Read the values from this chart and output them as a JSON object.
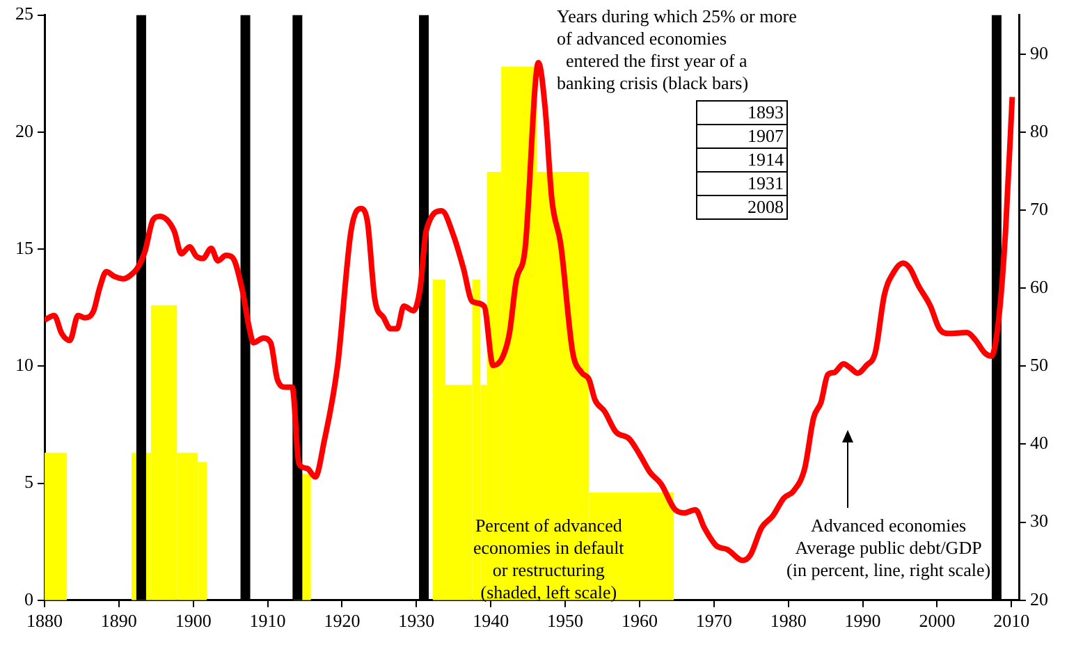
{
  "chart_data": {
    "type": "histogram",
    "annotations": [
      "Years during which 25% or more\nof advanced economies\n  entered the first year of a\nbanking crisis (black bars)",
      "1893",
      "1907",
      "1914",
      "1931",
      "2008",
      "Percent of advanced\neconomies in default\nor restructuring\n(shaded, left scale)",
      "Advanced economies\nAverage public debt/GDP\n(in percent, line, right scale)"
    ],
    "series": [
      {
        "color": "#ffff00",
        "bins": [
          1880,
          1883,
          1891.7,
          1894.3,
          1897.8,
          1900.6,
          1901.8,
          1913.5,
          1915.8,
          1932.2,
          1933.9,
          1937.5,
          1938.6,
          1939.5,
          1941.4,
          1946.2,
          1953.2,
          1964.6
        ],
        "values": [
          6.3,
          0,
          6.3,
          12.6,
          6.3,
          5.9,
          0,
          5.4,
          0,
          13.7,
          9.2,
          13.7,
          9.2,
          18.3,
          22.8,
          18.3,
          4.6
        ]
      },
      {
        "type": "line",
        "axis": "y2",
        "color": "#ff0000",
        "x": [
          1880,
          1881.3,
          1882.3,
          1883.4,
          1884.5,
          1885.4,
          1886.6,
          1887.4,
          1888.3,
          1889.4,
          1890.6,
          1891.5,
          1892.5,
          1893.5,
          1894.6,
          1895.5,
          1897.4,
          1898.4,
          1899.5,
          1900.4,
          1901.3,
          1902.4,
          1903.3,
          1904.4,
          1905.3,
          1906.6,
          1907.5,
          1908.1,
          1909.4,
          1910.4,
          1911.3,
          1912.4,
          1913.3,
          1914.2,
          1915.3,
          1916.4,
          1917.6,
          1919.4,
          1921.2,
          1922.5,
          1923.4,
          1924.4,
          1925.6,
          1926.5,
          1927.4,
          1928.3,
          1929.6,
          1930.5,
          1931.3,
          1933.4,
          1935,
          1936.3,
          1937.5,
          1939.1,
          1940.3,
          1941.5,
          1942.5,
          1943.4,
          1944.6,
          1946.4,
          1947.3,
          1948.2,
          1949.4,
          1951,
          1952.2,
          1953.2,
          1954,
          1955.3,
          1956.8,
          1958.6,
          1960,
          1961.4,
          1962.9,
          1964.7,
          1966,
          1967.5,
          1968.7,
          1970.3,
          1971.8,
          1973.9,
          1974.9,
          1976.4,
          1977.9,
          1979.4,
          1980.7,
          1982.2,
          1983.4,
          1984.4,
          1985.3,
          1986.2,
          1987.4,
          1988.3,
          1989.3,
          1990.5,
          1991.7,
          1992.9,
          1994.2,
          1995.4,
          1996.3,
          1997.5,
          1999.1,
          2000.3,
          2001.5,
          2004,
          2005.2,
          2006.4,
          2007.3,
          2008.3,
          2009.2,
          2010.1
        ],
        "values": [
          55.9,
          56.5,
          54.2,
          53.3,
          56.5,
          56.2,
          57.1,
          60,
          62.1,
          61.5,
          61.2,
          61.6,
          62.6,
          64.7,
          68.8,
          69.2,
          67.4,
          64.4,
          65.3,
          64.1,
          63.8,
          65.1,
          63.5,
          64.2,
          63.9,
          59.7,
          55,
          53,
          53.6,
          53,
          48.3,
          47.3,
          47.3,
          37.5,
          36.9,
          35.8,
          40.4,
          50.1,
          67.3,
          70.2,
          68.6,
          58.6,
          56.2,
          54.8,
          54.8,
          57.7,
          57.1,
          60,
          67.3,
          69.9,
          66.7,
          62.6,
          58.3,
          57.7,
          50.1,
          51,
          54.2,
          60.9,
          65,
          88.9,
          83.1,
          71.4,
          65.6,
          51.8,
          49.2,
          48.3,
          45.7,
          44.2,
          41.6,
          40.7,
          38.7,
          36.4,
          34.9,
          31.7,
          31.2,
          31.6,
          29.3,
          27,
          26.5,
          25.1,
          25.8,
          29.3,
          30.8,
          33.1,
          34,
          36.9,
          43.4,
          45.4,
          48.9,
          49.2,
          50.3,
          49.8,
          49.1,
          50.1,
          51.8,
          59.1,
          62.1,
          63.2,
          62.6,
          60.3,
          57.7,
          54.8,
          54.2,
          54.3,
          53.3,
          51.7,
          51.3,
          56.2,
          67.3,
          84.5
        ]
      }
    ],
    "xlim": [
      1880,
      2011
    ],
    "xticks": [
      1880,
      1890,
      1900,
      1910,
      1920,
      1930,
      1940,
      1950,
      1960,
      1970,
      1980,
      1990,
      2000,
      2010
    ],
    "ylim": [
      0,
      25
    ],
    "yticks": [
      0,
      5,
      10,
      15,
      20,
      25
    ],
    "y2lim": [
      20,
      95
    ],
    "y2ticks": [
      20,
      30,
      40,
      50,
      60,
      70,
      80,
      90
    ],
    "ref_lines": [
      {
        "axis": "x",
        "value": 1893,
        "color": "#000000"
      },
      {
        "axis": "x",
        "value": 1907,
        "color": "#000000"
      },
      {
        "axis": "x",
        "value": 1914,
        "color": "#000000"
      },
      {
        "axis": "x",
        "value": 1931,
        "color": "#000000"
      },
      {
        "axis": "x",
        "value": 2008,
        "color": "#000000"
      }
    ],
    "grid": false,
    "legend": false
  }
}
